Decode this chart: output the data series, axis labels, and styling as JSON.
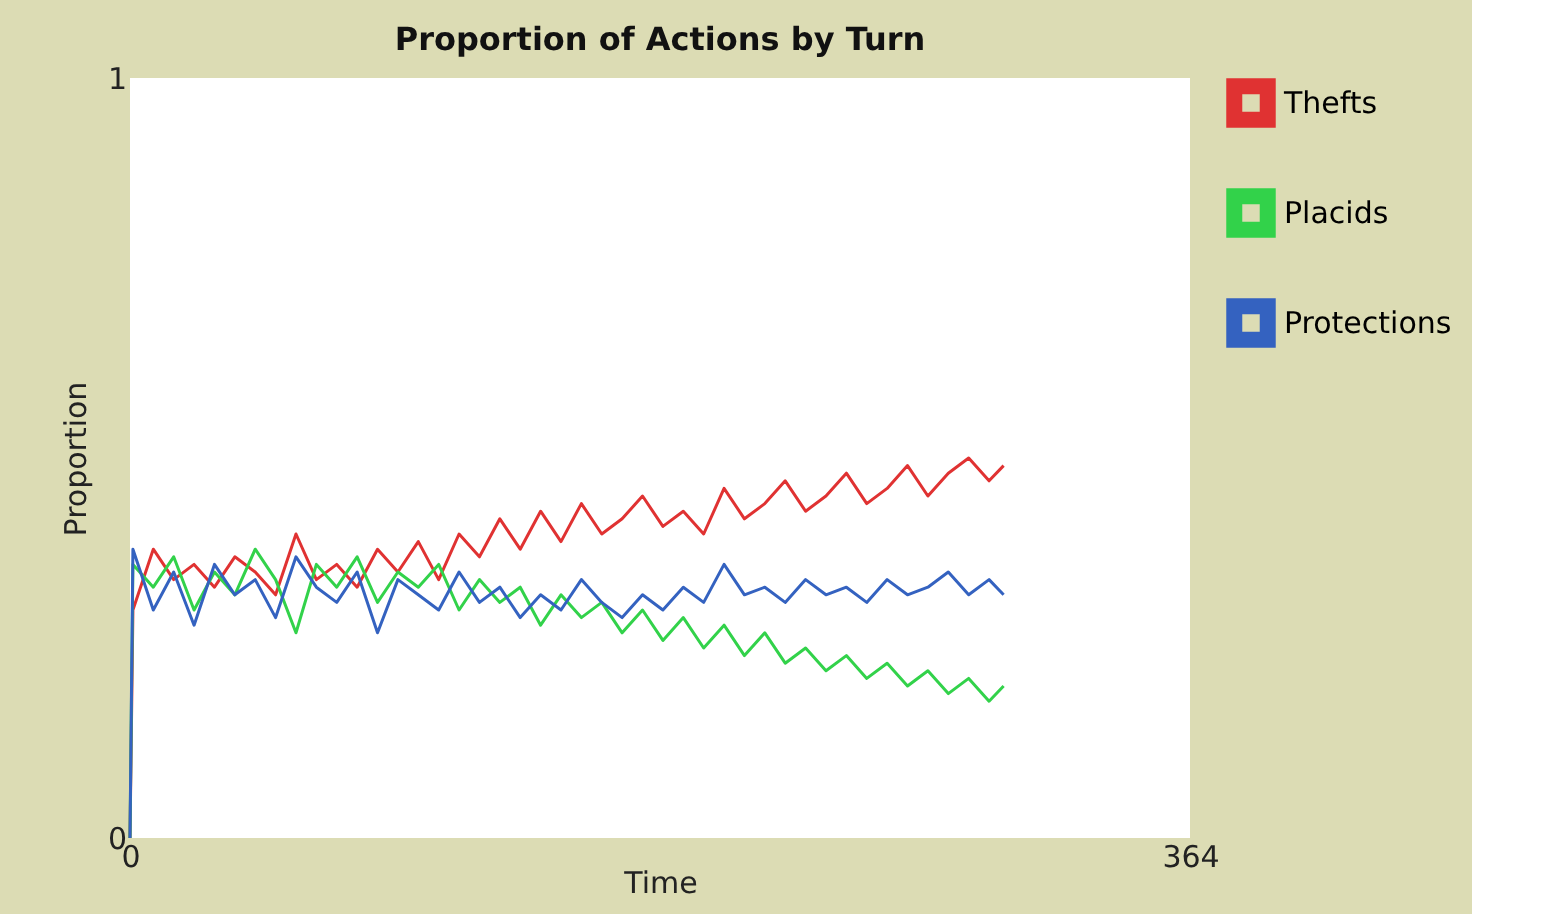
{
  "chart_data": {
    "type": "line",
    "title": "Proportion of Actions  by Turn",
    "xlabel": "Time",
    "ylabel": "Proportion",
    "x": [
      0,
      1,
      8,
      15,
      22,
      29,
      36,
      43,
      50,
      57,
      64,
      71,
      78,
      85,
      92,
      99,
      106,
      113,
      120,
      127,
      134,
      141,
      148,
      155,
      162,
      169,
      176,
      183,
      190,
      197,
      204,
      211,
      218,
      225,
      232,
      239,
      246,
      253,
      260,
      267,
      274,
      281,
      288,
      295,
      300
    ],
    "series": [
      {
        "name": "Thefts",
        "color": "#e03232",
        "values": [
          0,
          0.3,
          0.38,
          0.34,
          0.36,
          0.33,
          0.37,
          0.35,
          0.32,
          0.4,
          0.34,
          0.36,
          0.33,
          0.38,
          0.35,
          0.39,
          0.34,
          0.4,
          0.37,
          0.42,
          0.38,
          0.43,
          0.39,
          0.44,
          0.4,
          0.42,
          0.45,
          0.41,
          0.43,
          0.4,
          0.46,
          0.42,
          0.44,
          0.47,
          0.43,
          0.45,
          0.48,
          0.44,
          0.46,
          0.49,
          0.45,
          0.48,
          0.5,
          0.47,
          0.49
        ]
      },
      {
        "name": "Placids",
        "color": "#32d24a",
        "values": [
          0,
          0.36,
          0.33,
          0.37,
          0.3,
          0.35,
          0.32,
          0.38,
          0.34,
          0.27,
          0.36,
          0.33,
          0.37,
          0.31,
          0.35,
          0.33,
          0.36,
          0.3,
          0.34,
          0.31,
          0.33,
          0.28,
          0.32,
          0.29,
          0.31,
          0.27,
          0.3,
          0.26,
          0.29,
          0.25,
          0.28,
          0.24,
          0.27,
          0.23,
          0.25,
          0.22,
          0.24,
          0.21,
          0.23,
          0.2,
          0.22,
          0.19,
          0.21,
          0.18,
          0.2
        ]
      },
      {
        "name": "Protections",
        "color": "#3462c0",
        "values": [
          0,
          0.38,
          0.3,
          0.35,
          0.28,
          0.36,
          0.32,
          0.34,
          0.29,
          0.37,
          0.33,
          0.31,
          0.35,
          0.27,
          0.34,
          0.32,
          0.3,
          0.35,
          0.31,
          0.33,
          0.29,
          0.32,
          0.3,
          0.34,
          0.31,
          0.29,
          0.32,
          0.3,
          0.33,
          0.31,
          0.36,
          0.32,
          0.33,
          0.31,
          0.34,
          0.32,
          0.33,
          0.31,
          0.34,
          0.32,
          0.33,
          0.35,
          0.32,
          0.34,
          0.32
        ]
      }
    ],
    "xlim": [
      0,
      364
    ],
    "xticks": [
      0,
      364
    ],
    "ylim": [
      0,
      1
    ],
    "yticks": [
      0,
      1
    ],
    "grid": false,
    "legend": "top right",
    "marker": "none",
    "line_style": "solid"
  }
}
